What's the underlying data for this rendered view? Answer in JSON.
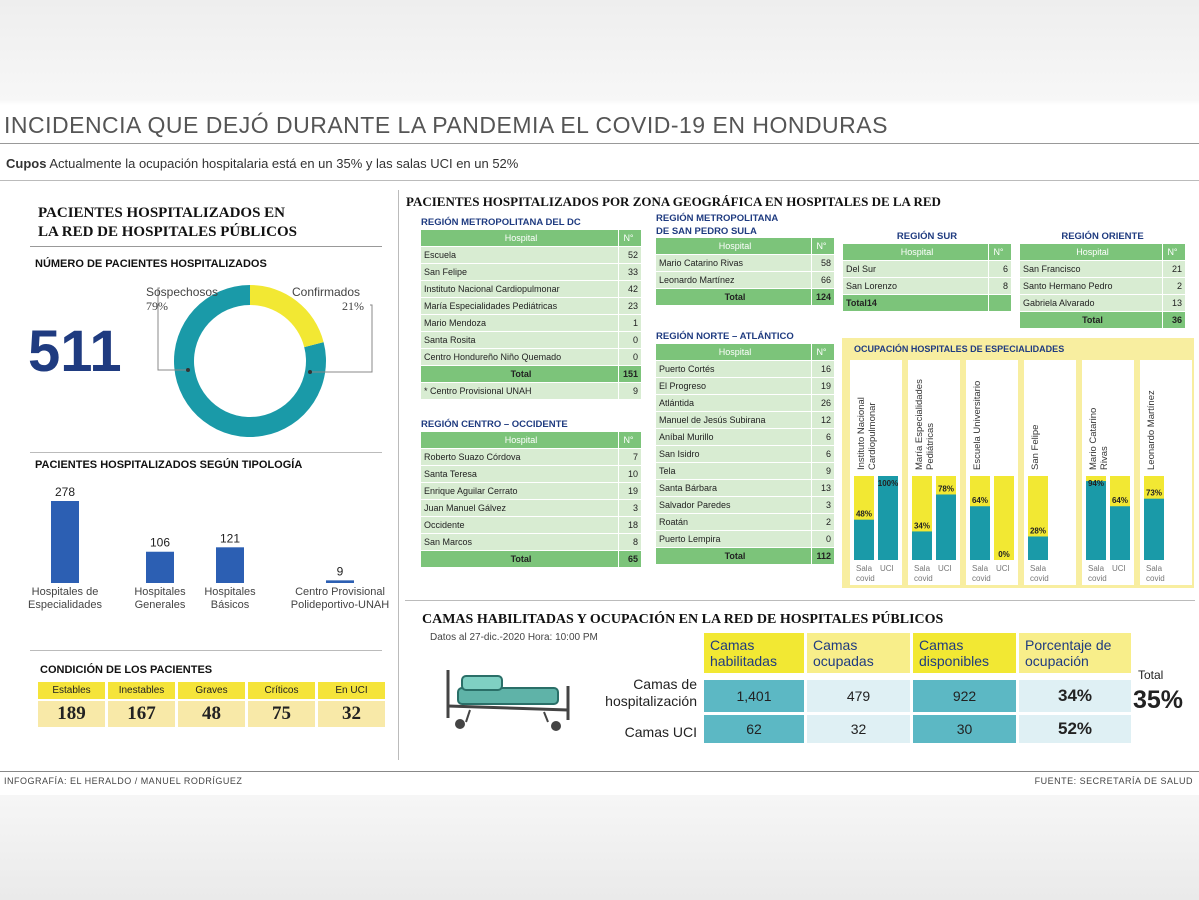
{
  "header": {
    "title": "INCIDENCIA QUE DEJÓ DURANTE LA PANDEMIA EL COVID-19 EN HONDURAS",
    "subtitle_bold": "Cupos",
    "subtitle_text": " Actualmente la ocupación hospitalaria está en un 35% y las salas UCI en un 52%"
  },
  "left": {
    "section_title_1": "PACIENTES HOSPITALIZADOS EN",
    "section_title_2": "LA RED DE HOSPITALES PÚBLICOS",
    "total_label": "NÚMERO DE PACIENTES HOSPITALIZADOS",
    "total_value": "511",
    "donut": {
      "sospechosos_label": "Sospechosos",
      "sospechosos_pct": "79%",
      "confirmados_label": "Confirmados",
      "confirmados_pct": "21%"
    },
    "tipologia_title": "PACIENTES HOSPITALIZADOS SEGÚN TIPOLOGÍA",
    "condicion_title": "CONDICIÓN DE LOS PACIENTES",
    "condicion": [
      {
        "label": "Estables",
        "value": "189"
      },
      {
        "label": "Inestables",
        "value": "167"
      },
      {
        "label": "Graves",
        "value": "48"
      },
      {
        "label": "Críticos",
        "value": "75"
      },
      {
        "label": "En UCI",
        "value": "32"
      }
    ]
  },
  "geo": {
    "title": "PACIENTES HOSPITALIZADOS POR ZONA GEOGRÁFICA EN HOSPITALES DE LA RED",
    "hospital_header": "Hospital",
    "n_header": "N°",
    "total_label": "Total",
    "metro_dc": {
      "title": "REGIÓN METROPOLITANA DEL DC",
      "rows": [
        {
          "name": "Escuela",
          "n": "52"
        },
        {
          "name": "San Felipe",
          "n": "33"
        },
        {
          "name": "Instituto Nacional Cardiopulmonar",
          "n": "42"
        },
        {
          "name": "María Especialidades Pediátricas",
          "n": "23"
        },
        {
          "name": "Mario Mendoza",
          "n": "1"
        },
        {
          "name": "Santa Rosita",
          "n": "0"
        },
        {
          "name": "Centro Hondureño Niño Quemado",
          "n": "0"
        }
      ],
      "total": "151",
      "extra_name": "* Centro Provisional UNAH",
      "extra_n": "9"
    },
    "metro_sps": {
      "title_1": "REGIÓN METROPOLITANA",
      "title_2": "DE SAN PEDRO SULA",
      "rows": [
        {
          "name": "Mario Catarino Rivas",
          "n": "58"
        },
        {
          "name": "Leonardo Martínez",
          "n": "66"
        }
      ],
      "total": "124"
    },
    "sur": {
      "title": "REGIÓN SUR",
      "rows": [
        {
          "name": "Del Sur",
          "n": "6"
        },
        {
          "name": "San Lorenzo",
          "n": "8"
        }
      ],
      "total_label": "Total14"
    },
    "oriente": {
      "title": "REGIÓN ORIENTE",
      "rows": [
        {
          "name": "San Francisco",
          "n": "21"
        },
        {
          "name": "Santo Hermano Pedro",
          "n": "2"
        },
        {
          "name": "Gabriela Alvarado",
          "n": "13"
        }
      ],
      "total": "36"
    },
    "centro_occ": {
      "title": "REGIÓN CENTRO – OCCIDENTE",
      "rows": [
        {
          "name": "Roberto Suazo Córdova",
          "n": "7"
        },
        {
          "name": "Santa Teresa",
          "n": "10"
        },
        {
          "name": "Enrique Aguilar Cerrato",
          "n": "19"
        },
        {
          "name": "Juan Manuel Gálvez",
          "n": "3"
        },
        {
          "name": "Occidente",
          "n": "18"
        },
        {
          "name": "San Marcos",
          "n": "8"
        }
      ],
      "total": "65"
    },
    "norte": {
      "title": "REGIÓN NORTE – ATLÁNTICO",
      "rows": [
        {
          "name": "Puerto Cortés",
          "n": "16"
        },
        {
          "name": "El Progreso",
          "n": "19"
        },
        {
          "name": "Atlántida",
          "n": "26"
        },
        {
          "name": "Manuel de Jesús Subirana",
          "n": "12"
        },
        {
          "name": "Aníbal Murillo",
          "n": "6"
        },
        {
          "name": "San Isidro",
          "n": "6"
        },
        {
          "name": "Tela",
          "n": "9"
        },
        {
          "name": "Santa Bárbara",
          "n": "13"
        },
        {
          "name": "Salvador Paredes",
          "n": "3"
        },
        {
          "name": "Roatán",
          "n": "2"
        },
        {
          "name": "Puerto Lempira",
          "n": "0"
        }
      ],
      "total": "112"
    }
  },
  "camas": {
    "title": "CAMAS HABILITADAS Y OCUPACIÓN EN LA RED DE HOSPITALES PÚBLICOS",
    "date_note": "Datos al 27-dic.-2020 Hora: 10:00 PM",
    "col_habilitadas": "Camas habilitadas",
    "col_ocupadas": "Camas ocupadas",
    "col_disponibles": "Camas disponibles",
    "col_porcentaje": "Porcentaje de ocupación",
    "row_hosp_1": "Camas de",
    "row_hosp_2": "hospitalización",
    "row_uci": "Camas UCI",
    "hosp": {
      "habilitadas": "1,401",
      "ocupadas": "479",
      "disponibles": "922",
      "porcentaje": "34%"
    },
    "uci": {
      "habilitadas": "62",
      "ocupadas": "32",
      "disponibles": "30",
      "porcentaje": "52%"
    },
    "total_label": "Total",
    "total_value": "35%"
  },
  "footer": {
    "left": "INFOGRAFÍA: EL HERALDO / MANUEL RODRÍGUEZ",
    "right": "FUENTE: SECRETARÍA DE SALUD"
  },
  "colors": {
    "teal": "#1a9aa8",
    "yellow": "#f2e833",
    "navy": "#1f3b80",
    "blue_bar": "#2c5fb3",
    "green": "#7cc47a"
  },
  "chart_data": [
    {
      "type": "pie",
      "title": "NÚMERO DE PACIENTES HOSPITALIZADOS",
      "categories": [
        "Sospechosos",
        "Confirmados"
      ],
      "values": [
        79,
        21
      ]
    },
    {
      "type": "bar",
      "title": "PACIENTES HOSPITALIZADOS SEGÚN TIPOLOGÍA",
      "categories": [
        "Hospitales de Especialidades",
        "Hospitales Generales",
        "Hospitales Básicos",
        "Centro Provisional Polideportivo-UNAH"
      ],
      "values": [
        278,
        106,
        121,
        9
      ]
    },
    {
      "type": "bar",
      "title": "OCUPACIÓN HOSPITALES DE ESPECIALIDADES",
      "categories": [
        "Instituto Nacional Cardiopulmonar",
        "María Especialidades Pediátricas",
        "Escuela Universitario",
        "San Felipe",
        "Mario Catarino Rivas",
        "Leonardo Martínez"
      ],
      "series_labels": [
        "Sala covid",
        "UCI"
      ],
      "series": [
        {
          "name": "Sala covid",
          "values": [
            48,
            34,
            64,
            28,
            94,
            73
          ]
        },
        {
          "name": "UCI",
          "values": [
            100,
            78,
            0,
            null,
            64,
            null
          ]
        }
      ],
      "value_labels": [
        [
          "48%",
          "100%"
        ],
        [
          "34%",
          "78%"
        ],
        [
          "64%",
          "0%"
        ],
        [
          "28%"
        ],
        [
          "94%",
          "64%"
        ],
        [
          "73%"
        ]
      ],
      "ylim": [
        0,
        100
      ]
    }
  ]
}
